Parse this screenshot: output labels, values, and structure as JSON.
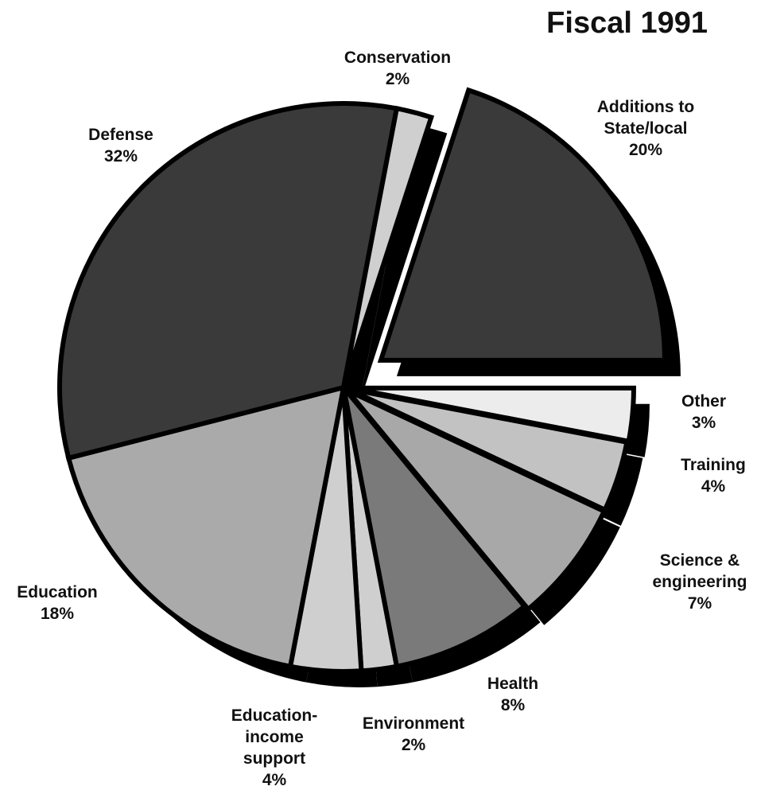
{
  "chart_data": {
    "type": "pie",
    "title": "Fiscal 1991",
    "categories": [
      "Additions to State/local",
      "Other",
      "Training",
      "Science & engineering",
      "Health",
      "Environment",
      "Education-income support",
      "Education",
      "Defense",
      "Conservation"
    ],
    "values": [
      20,
      3,
      4,
      7,
      8,
      2,
      4,
      18,
      32,
      2
    ],
    "value_labels": [
      "20%",
      "3%",
      "4%",
      "7%",
      "8%",
      "2%",
      "4%",
      "18%",
      "32%",
      "2%"
    ],
    "colors": [
      "#3a3a3a",
      "#ececec",
      "#c2c2c2",
      "#a8a8a8",
      "#7a7a7a",
      "#cfcfcf",
      "#cfcfcf",
      "#aaaaaa",
      "#3a3a3a",
      "#cfcfcf"
    ]
  }
}
